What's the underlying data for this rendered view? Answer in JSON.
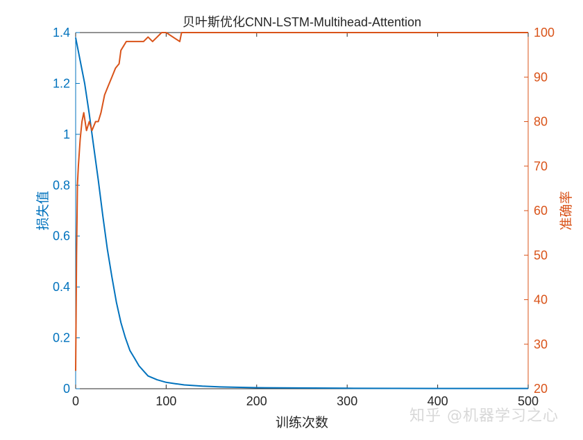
{
  "chart_data": {
    "type": "line",
    "title": "贝叶斯优化CNN-LSTM-Multihead-Attention",
    "xlabel": "训练次数",
    "ylabel_left": "损失值",
    "ylabel_right": "准确率",
    "xlim": [
      0,
      500
    ],
    "ylim_left": [
      0,
      1.4
    ],
    "ylim_right": [
      20,
      100
    ],
    "xticks": [
      "0",
      "100",
      "200",
      "300",
      "400",
      "500"
    ],
    "yticks_left": [
      "0",
      "0.2",
      "0.4",
      "0.6",
      "0.8",
      "1",
      "1.2",
      "1.4"
    ],
    "yticks_right": [
      "20",
      "30",
      "40",
      "50",
      "60",
      "70",
      "80",
      "90",
      "100"
    ],
    "grid": false,
    "colors": {
      "left": "#0072BD",
      "right": "#D95319"
    },
    "series": [
      {
        "axis": "left",
        "x": [
          0,
          5,
          10,
          15,
          20,
          25,
          30,
          35,
          40,
          45,
          50,
          55,
          60,
          65,
          70,
          75,
          80,
          90,
          100,
          110,
          120,
          140,
          160,
          200,
          300,
          400,
          500
        ],
        "values": [
          1.38,
          1.29,
          1.2,
          1.08,
          0.95,
          0.82,
          0.68,
          0.55,
          0.44,
          0.34,
          0.26,
          0.2,
          0.15,
          0.12,
          0.09,
          0.07,
          0.05,
          0.035,
          0.025,
          0.02,
          0.015,
          0.01,
          0.007,
          0.004,
          0.002,
          0.001,
          0.001
        ]
      },
      {
        "axis": "right",
        "x": [
          0,
          1,
          2,
          3,
          5,
          7,
          9,
          12,
          15,
          18,
          22,
          25,
          28,
          32,
          36,
          40,
          44,
          48,
          50,
          53,
          56,
          60,
          75,
          80,
          85,
          90,
          95,
          100,
          115,
          117,
          500
        ],
        "values": [
          24,
          50,
          66,
          70,
          76,
          80,
          82,
          78,
          80,
          78,
          80,
          80,
          82,
          86,
          88,
          90,
          92,
          93,
          96,
          97,
          98,
          98,
          98,
          99,
          98,
          99,
          100,
          100,
          98,
          100,
          100
        ]
      }
    ]
  },
  "watermark": "知乎 @机器学习之心"
}
